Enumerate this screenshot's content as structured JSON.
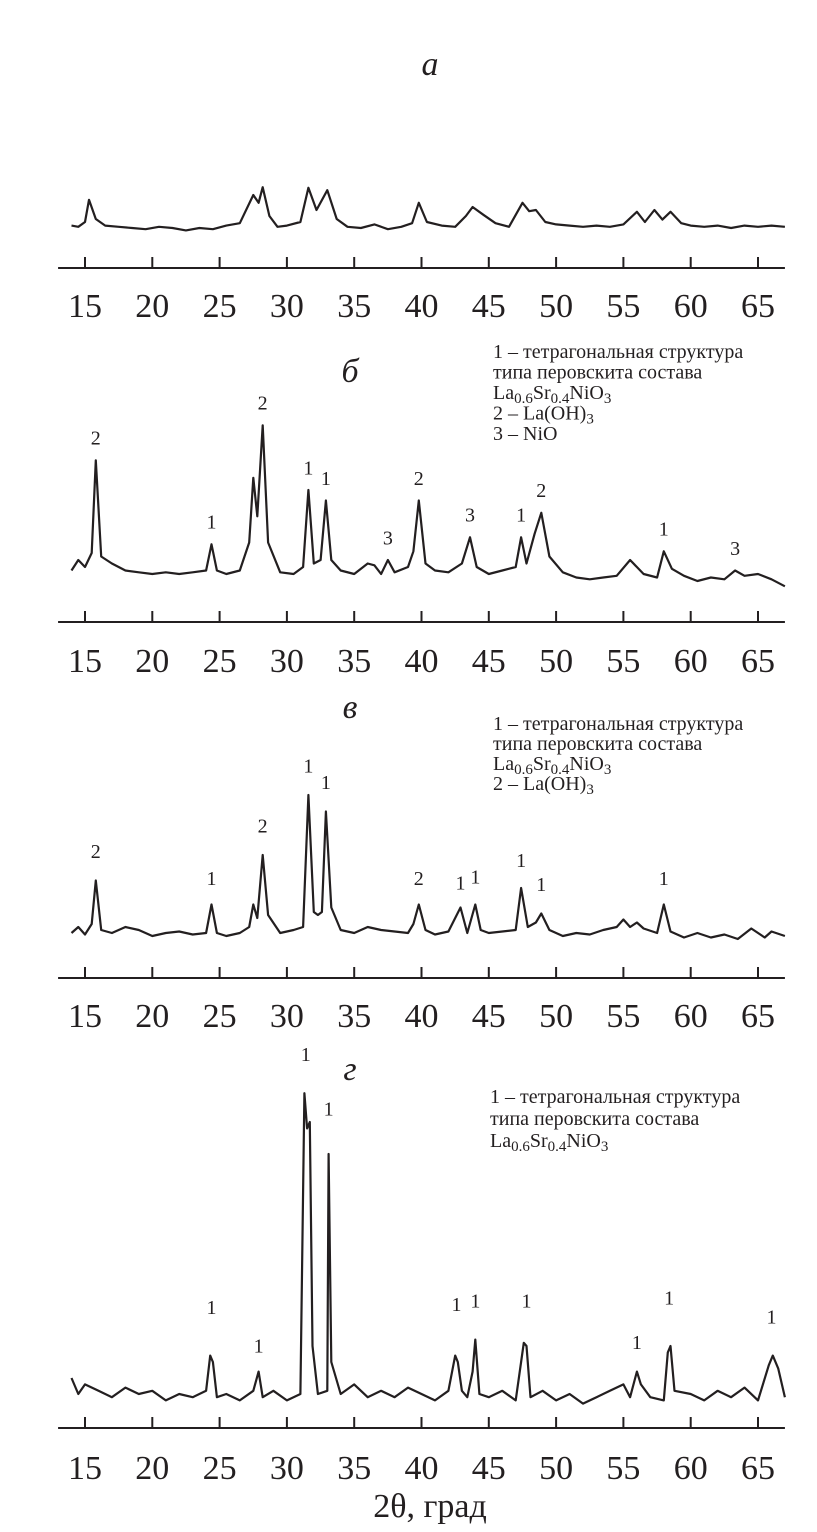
{
  "chart_data": [
    {
      "type": "line",
      "title": "а",
      "color": "#231f20",
      "xlim": [
        13,
        67
      ],
      "ylim": [
        0,
        100
      ],
      "xticks": [
        15,
        20,
        25,
        30,
        35,
        40,
        45,
        50,
        55,
        60,
        65
      ],
      "x": [
        14,
        14.5,
        15,
        15.3,
        15.8,
        16.5,
        17.5,
        18.5,
        19.5,
        20.5,
        21.5,
        22.5,
        23.5,
        24.5,
        25.5,
        26.5,
        27.5,
        27.9,
        28.2,
        28.7,
        29.3,
        30,
        31,
        31.6,
        32.2,
        33,
        33.7,
        34.5,
        35.5,
        36.5,
        37.5,
        38.5,
        39.3,
        39.8,
        40.4,
        41.5,
        42.5,
        43.3,
        43.8,
        44.6,
        45.5,
        46.5,
        47.5,
        48,
        48.5,
        49.2,
        50,
        51,
        52,
        53,
        54,
        55,
        56,
        56.6,
        57.3,
        57.9,
        58.5,
        59.3,
        60,
        61,
        62,
        63,
        64,
        65,
        66,
        67
      ],
      "values": [
        24,
        22,
        30,
        67,
        35,
        24,
        22,
        20,
        18,
        22,
        20,
        16,
        20,
        18,
        24,
        28,
        75,
        62,
        88,
        40,
        22,
        24,
        30,
        87,
        50,
        83,
        35,
        22,
        20,
        26,
        18,
        22,
        28,
        62,
        30,
        24,
        22,
        40,
        55,
        42,
        28,
        22,
        62,
        48,
        50,
        30,
        26,
        24,
        22,
        24,
        22,
        26,
        47,
        30,
        50,
        34,
        47,
        28,
        24,
        22,
        24,
        20,
        24,
        22,
        24,
        22
      ]
    },
    {
      "type": "line",
      "title": "б",
      "color": "#231f20",
      "xlim": [
        13,
        67
      ],
      "ylim": [
        0,
        100
      ],
      "xticks": [
        15,
        20,
        25,
        30,
        35,
        40,
        45,
        50,
        55,
        60,
        65
      ],
      "x": [
        14,
        14.5,
        15,
        15.5,
        15.8,
        16.2,
        17,
        18,
        19,
        20,
        21,
        22,
        23,
        24,
        24.4,
        24.8,
        25.5,
        26.5,
        27.2,
        27.5,
        27.8,
        28.2,
        28.6,
        29.5,
        30.5,
        31.2,
        31.6,
        32,
        32.5,
        32.9,
        33.3,
        34,
        35,
        36,
        36.5,
        37,
        37.5,
        38,
        39,
        39.4,
        39.8,
        40.3,
        41,
        42,
        43,
        43.6,
        44.1,
        45,
        46,
        47,
        47.4,
        47.8,
        48.4,
        48.9,
        49.5,
        50.5,
        51.5,
        52.5,
        53.5,
        54.5,
        55.5,
        56.5,
        57.5,
        58,
        58.6,
        59.5,
        60.5,
        61.5,
        62.5,
        63.3,
        64,
        65,
        66,
        67
      ],
      "values": [
        14,
        20,
        16,
        24,
        77,
        22,
        18,
        14,
        13,
        12,
        13,
        12,
        13,
        14,
        29,
        14,
        12,
        14,
        30,
        67,
        45,
        97,
        30,
        13,
        12,
        16,
        60,
        18,
        20,
        54,
        20,
        14,
        12,
        18,
        17,
        12,
        20,
        13,
        16,
        25,
        54,
        18,
        14,
        13,
        18,
        33,
        16,
        12,
        14,
        16,
        33,
        18,
        35,
        47,
        22,
        13,
        10,
        9,
        10,
        11,
        20,
        12,
        10,
        25,
        15,
        11,
        8,
        10,
        9,
        14,
        11,
        12,
        9,
        5
      ],
      "annotations": [
        {
          "x": 15.8,
          "y": 86,
          "text": "2"
        },
        {
          "x": 24.4,
          "y": 38,
          "text": "1"
        },
        {
          "x": 28.2,
          "y": 106,
          "text": "2"
        },
        {
          "x": 31.6,
          "y": 69,
          "text": "1"
        },
        {
          "x": 32.9,
          "y": 63,
          "text": "1"
        },
        {
          "x": 37.5,
          "y": 29,
          "text": "3"
        },
        {
          "x": 39.8,
          "y": 63,
          "text": "2"
        },
        {
          "x": 43.6,
          "y": 42,
          "text": "3"
        },
        {
          "x": 47.4,
          "y": 42,
          "text": "1"
        },
        {
          "x": 48.9,
          "y": 56,
          "text": "2"
        },
        {
          "x": 58,
          "y": 34,
          "text": "1"
        },
        {
          "x": 63.3,
          "y": 23,
          "text": "3"
        }
      ],
      "legend": [
        [
          {
            "text": "1 – тетрагональная структура"
          }
        ],
        [
          {
            "text": "типа перовскита состава"
          }
        ],
        [
          {
            "text": "La"
          },
          {
            "text": "0.6",
            "sub": true
          },
          {
            "text": "Sr"
          },
          {
            "text": "0.4",
            "sub": true
          },
          {
            "text": "NiO"
          },
          {
            "text": "3",
            "sub": true
          }
        ],
        [
          {
            "text": "2 – La(OH)"
          },
          {
            "text": "3",
            "sub": true
          }
        ],
        [
          {
            "text": "3 – NiO"
          }
        ]
      ]
    },
    {
      "type": "line",
      "title": "в",
      "color": "#231f20",
      "xlim": [
        13,
        67
      ],
      "ylim": [
        0,
        100
      ],
      "xticks": [
        15,
        20,
        25,
        30,
        35,
        40,
        45,
        50,
        55,
        60,
        65
      ],
      "x": [
        14,
        14.5,
        15,
        15.5,
        15.8,
        16.2,
        17,
        18,
        19,
        20,
        21,
        22,
        23,
        24,
        24.4,
        24.8,
        25.5,
        26.5,
        27.2,
        27.5,
        27.8,
        28.2,
        28.6,
        29.5,
        30.5,
        31.2,
        31.6,
        32,
        32.3,
        32.6,
        32.9,
        33.3,
        34,
        35,
        36,
        37,
        38,
        39,
        39.4,
        39.8,
        40.3,
        41,
        42,
        42.9,
        43.4,
        44,
        44.4,
        45,
        46,
        47,
        47.4,
        47.9,
        48.5,
        48.9,
        49.5,
        50.5,
        51.5,
        52.5,
        53.5,
        54.5,
        55,
        55.5,
        56,
        56.5,
        57.5,
        58,
        58.5,
        59.5,
        60.5,
        61.5,
        62.5,
        63.5,
        64.5,
        65.5,
        66,
        67
      ],
      "values": [
        8,
        12,
        7,
        14,
        43,
        10,
        8,
        12,
        10,
        6,
        8,
        9,
        7,
        8,
        27,
        8,
        6,
        8,
        12,
        27,
        18,
        60,
        20,
        8,
        10,
        12,
        100,
        22,
        20,
        22,
        89,
        25,
        10,
        8,
        12,
        10,
        9,
        8,
        14,
        27,
        10,
        7,
        9,
        25,
        8,
        27,
        10,
        8,
        9,
        10,
        38,
        12,
        15,
        21,
        10,
        6,
        8,
        7,
        10,
        12,
        17,
        12,
        15,
        11,
        8,
        27,
        9,
        5,
        8,
        5,
        7,
        4,
        11,
        5,
        9,
        6
      ],
      "annotations": [
        {
          "x": 15.8,
          "y": 58,
          "text": "2"
        },
        {
          "x": 24.4,
          "y": 40,
          "text": "1"
        },
        {
          "x": 28.2,
          "y": 75,
          "text": "2"
        },
        {
          "x": 31.6,
          "y": 115,
          "text": "1"
        },
        {
          "x": 32.9,
          "y": 104,
          "text": "1"
        },
        {
          "x": 39.8,
          "y": 40,
          "text": "2"
        },
        {
          "x": 42.9,
          "y": 37,
          "text": "1"
        },
        {
          "x": 44,
          "y": 41,
          "text": "1"
        },
        {
          "x": 47.4,
          "y": 52,
          "text": "1"
        },
        {
          "x": 48.9,
          "y": 36,
          "text": "1"
        },
        {
          "x": 58,
          "y": 40,
          "text": "1"
        }
      ],
      "legend": [
        [
          {
            "text": "1 – тетрагональная структура"
          }
        ],
        [
          {
            "text": "типа перовскита состава"
          }
        ],
        [
          {
            "text": "La"
          },
          {
            "text": "0.6",
            "sub": true
          },
          {
            "text": "Sr"
          },
          {
            "text": "0.4",
            "sub": true
          },
          {
            "text": "NiO"
          },
          {
            "text": "3",
            "sub": true
          }
        ],
        [
          {
            "text": "2 – La(OH)"
          },
          {
            "text": "3",
            "sub": true
          }
        ]
      ]
    },
    {
      "type": "line",
      "title": "г",
      "color": "#231f20",
      "xlim": [
        13,
        67
      ],
      "ylim": [
        0,
        100
      ],
      "xticks": [
        15,
        20,
        25,
        30,
        35,
        40,
        45,
        50,
        55,
        60,
        65
      ],
      "xlabel": "2θ, град",
      "x": [
        14,
        14.5,
        15,
        16,
        17,
        18,
        19,
        20,
        21,
        22,
        23,
        24,
        24.3,
        24.5,
        24.8,
        25.5,
        26.5,
        27.5,
        27.9,
        28.2,
        29,
        30,
        31,
        31.3,
        31.5,
        31.7,
        31.9,
        32.3,
        33,
        33.1,
        33.3,
        34,
        35,
        36,
        37,
        38,
        39,
        40,
        41,
        42,
        42.5,
        42.7,
        43,
        43.4,
        43.8,
        44,
        44.3,
        45,
        46,
        47,
        47.6,
        47.8,
        48.1,
        49,
        50,
        51,
        52,
        53,
        54,
        55,
        55.5,
        56,
        56.3,
        57,
        58,
        58.3,
        58.5,
        58.8,
        60,
        61,
        62,
        63,
        64,
        65,
        65.8,
        66.1,
        66.5,
        67
      ],
      "values": [
        10,
        5,
        8,
        6,
        4,
        7,
        5,
        6,
        3,
        5,
        4,
        6,
        17,
        15,
        4,
        5,
        3,
        6,
        12,
        4,
        6,
        3,
        5,
        99,
        88,
        90,
        20,
        5,
        6,
        80,
        15,
        5,
        8,
        4,
        6,
        4,
        7,
        5,
        3,
        6,
        17,
        15,
        6,
        4,
        12,
        22,
        5,
        4,
        6,
        3,
        21,
        20,
        4,
        6,
        3,
        5,
        2,
        4,
        6,
        8,
        4,
        12,
        8,
        4,
        3,
        18,
        20,
        6,
        5,
        3,
        6,
        4,
        7,
        3,
        14,
        17,
        13,
        4
      ],
      "annotations": [
        {
          "x": 24.4,
          "y": 30,
          "text": "1"
        },
        {
          "x": 27.9,
          "y": 18,
          "text": "1"
        },
        {
          "x": 31.4,
          "y": 109,
          "text": "1"
        },
        {
          "x": 33.1,
          "y": 92,
          "text": "1"
        },
        {
          "x": 42.6,
          "y": 31,
          "text": "1"
        },
        {
          "x": 44,
          "y": 32,
          "text": "1"
        },
        {
          "x": 47.8,
          "y": 32,
          "text": "1"
        },
        {
          "x": 56,
          "y": 19,
          "text": "1"
        },
        {
          "x": 58.4,
          "y": 33,
          "text": "1"
        },
        {
          "x": 66,
          "y": 27,
          "text": "1"
        }
      ],
      "legend": [
        [
          {
            "text": "1 – тетрагональная структура"
          }
        ],
        [
          {
            "text": "типа перовскита состава"
          }
        ],
        [
          {
            "text": "La"
          },
          {
            "text": "0.6",
            "sub": true
          },
          {
            "text": "Sr"
          },
          {
            "text": "0.4",
            "sub": true
          },
          {
            "text": "NiO"
          },
          {
            "text": "3",
            "sub": true
          }
        ]
      ]
    }
  ]
}
